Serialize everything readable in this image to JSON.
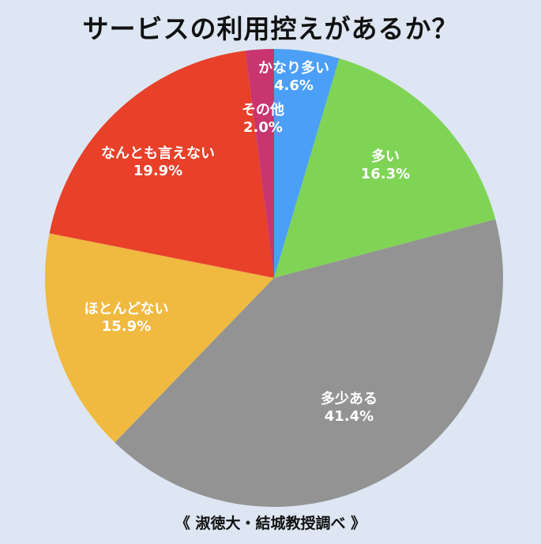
{
  "chart_data": {
    "type": "pie",
    "title": "サービスの利用控えがあるか？",
    "source": "《 淑徳大・結城教授調べ 》",
    "start_angle_deg": 0,
    "direction": "clockwise",
    "slices": [
      {
        "label": "かなり多い",
        "value": 4.6,
        "value_text": "4.6%",
        "color": "#4b9ff6"
      },
      {
        "label": "多い",
        "value": 16.3,
        "value_text": "16.3%",
        "color": "#7fd455"
      },
      {
        "label": "多少ある",
        "value": 41.4,
        "value_text": "41.4%",
        "color": "#939393"
      },
      {
        "label": "ほとんどない",
        "value": 15.9,
        "value_text": "15.9%",
        "color": "#f0b940"
      },
      {
        "label": "なんとも言えない",
        "value": 19.9,
        "value_text": "19.9%",
        "color": "#e84029"
      },
      {
        "label": "その他",
        "value": 2.0,
        "value_text": "2.0%",
        "color": "#c8356f"
      }
    ]
  }
}
